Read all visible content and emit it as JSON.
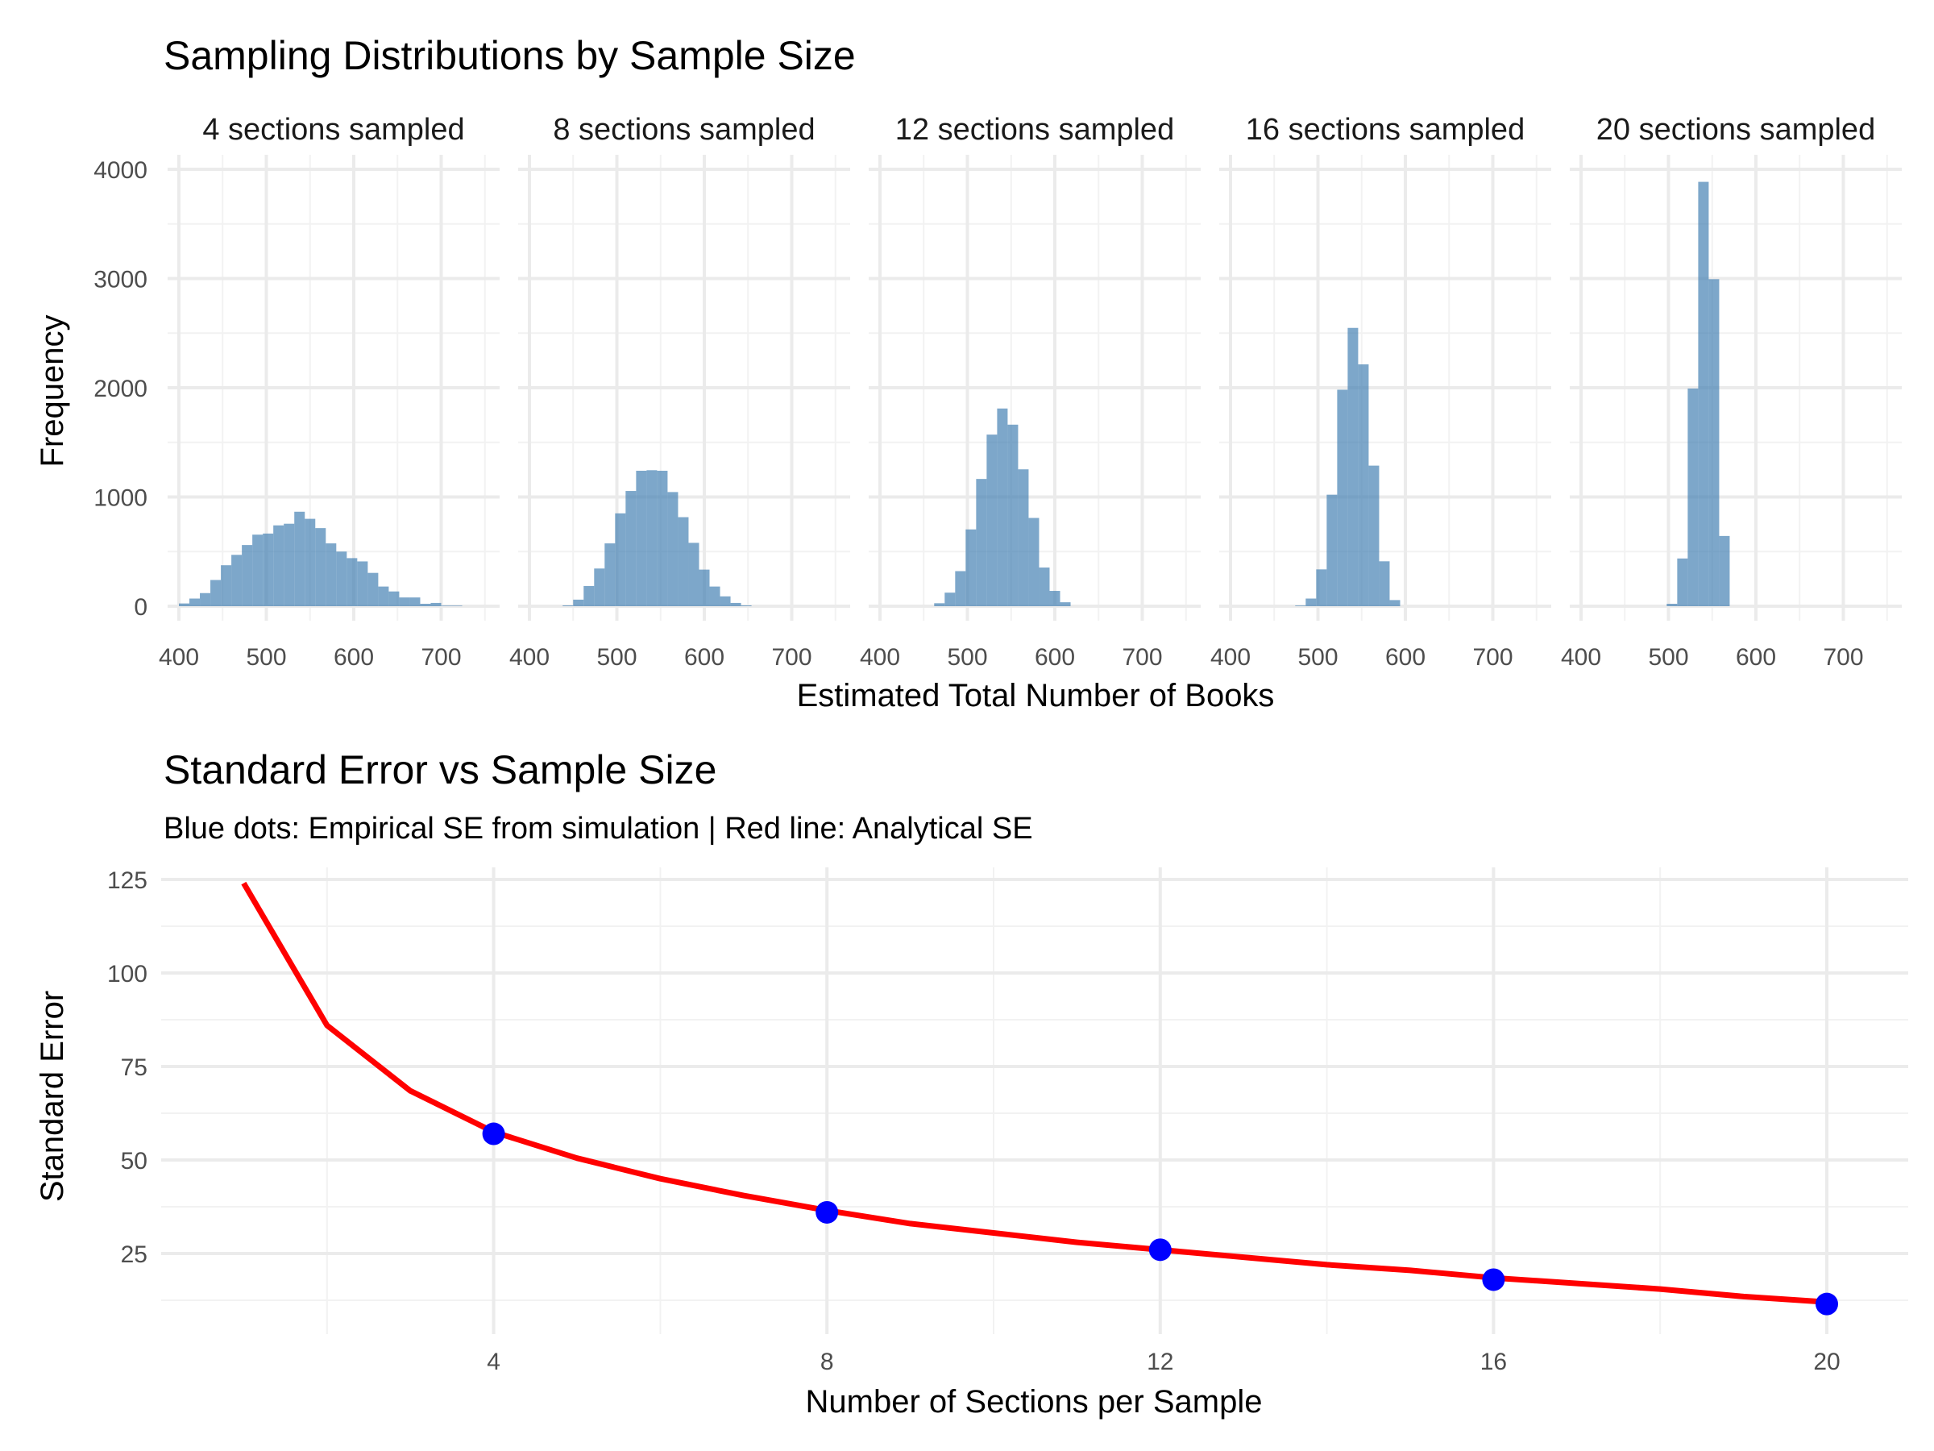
{
  "chart_data": [
    {
      "type": "bar",
      "subtype": "histogram-facets",
      "title": "Sampling Distributions by Sample Size",
      "xlabel": "Estimated Total Number of Books",
      "ylabel": "Frequency",
      "xlim": [
        388,
        762
      ],
      "ylim": [
        0,
        4000
      ],
      "x_ticks": [
        "400",
        "500",
        "600",
        "700"
      ],
      "x_tick_values": [
        400,
        500,
        600,
        700
      ],
      "y_ticks": [
        "0",
        "1000",
        "2000",
        "3000",
        "4000"
      ],
      "y_tick_values": [
        0,
        1000,
        2000,
        3000,
        4000
      ],
      "bar_color": "#4682B4",
      "grid": true,
      "facets": [
        {
          "label": "4 sections sampled",
          "bin_start": 400,
          "bin_width": 12,
          "counts": [
            25,
            70,
            120,
            240,
            375,
            470,
            560,
            655,
            665,
            740,
            755,
            865,
            800,
            715,
            575,
            500,
            440,
            410,
            305,
            180,
            135,
            80,
            80,
            22,
            30,
            5,
            5
          ]
        },
        {
          "label": "8 sections sampled",
          "bin_start": 438,
          "bin_width": 12,
          "counts": [
            7,
            60,
            185,
            345,
            575,
            850,
            1055,
            1240,
            1245,
            1240,
            1045,
            815,
            580,
            335,
            180,
            90,
            30,
            7
          ]
        },
        {
          "label": "12 sections sampled",
          "bin_start": 462,
          "bin_width": 12,
          "counts": [
            27,
            124,
            321,
            703,
            1165,
            1571,
            1810,
            1662,
            1253,
            808,
            354,
            140,
            36
          ]
        },
        {
          "label": "16 sections sampled",
          "bin_start": 474,
          "bin_width": 12,
          "counts": [
            6,
            70,
            337,
            1021,
            1982,
            2548,
            2214,
            1287,
            411,
            56
          ]
        },
        {
          "label": "20 sections sampled",
          "bin_start": 498,
          "bin_width": 12,
          "counts": [
            22,
            437,
            1993,
            3885,
            2994,
            643
          ]
        }
      ]
    },
    {
      "type": "line",
      "title": "Standard Error vs Sample Size",
      "subtitle": "Blue dots: Empirical SE from simulation | Red line: Analytical SE",
      "xlabel": "Number of Sections per Sample",
      "ylabel": "Standard Error",
      "xlim": [
        0.05,
        20.95
      ],
      "ylim": [
        10.5,
        128.5
      ],
      "x_ticks": [
        "4",
        "8",
        "12",
        "16",
        "20"
      ],
      "x_tick_values": [
        4,
        8,
        12,
        16,
        20
      ],
      "y_ticks": [
        "25",
        "50",
        "75",
        "100",
        "125"
      ],
      "y_tick_values": [
        25,
        50,
        75,
        100,
        125
      ],
      "grid": true,
      "series": [
        {
          "name": "Analytical SE",
          "color": "#FF0000",
          "x": [
            1,
            2,
            3,
            4,
            5,
            6,
            7,
            8,
            9,
            10,
            11,
            12,
            13,
            14,
            15,
            16,
            17,
            18,
            19,
            20
          ],
          "y": [
            124,
            86,
            68.5,
            57.5,
            50.5,
            45,
            40.5,
            36.5,
            33,
            30.5,
            28,
            26,
            24,
            22,
            20.5,
            18.5,
            17,
            15.5,
            13.5,
            12
          ]
        },
        {
          "name": "Empirical SE",
          "color": "#0000FF",
          "x": [
            4,
            8,
            12,
            16,
            20
          ],
          "y": [
            57,
            36,
            26,
            18,
            11.5
          ]
        }
      ]
    }
  ]
}
